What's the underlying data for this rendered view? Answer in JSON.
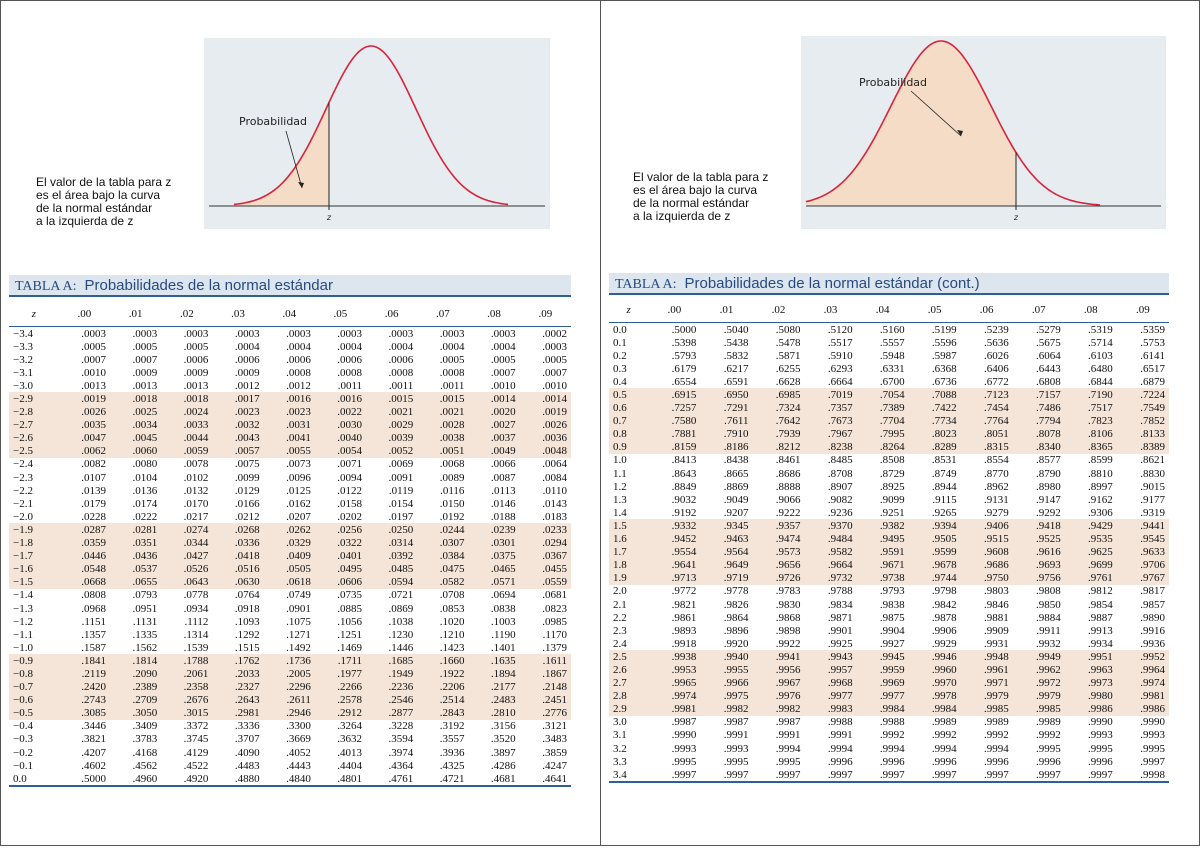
{
  "left": {
    "figure": {
      "label": "Probabilidad",
      "axis": "z",
      "caption": [
        "El valor de la tabla para z",
        "es el área bajo la curva",
        "de la normal estándar",
        "a la izquierda de z"
      ]
    },
    "table": {
      "prefix": "TABLA A:",
      "title": "Probabilidades de la normal estándar",
      "header": [
        "z",
        ".00",
        ".01",
        ".02",
        ".03",
        ".04",
        ".05",
        ".06",
        ".07",
        ".08",
        ".09"
      ],
      "rows": [
        [
          "−3.4",
          ".0003",
          ".0003",
          ".0003",
          ".0003",
          ".0003",
          ".0003",
          ".0003",
          ".0003",
          ".0003",
          ".0002"
        ],
        [
          "−3.3",
          ".0005",
          ".0005",
          ".0005",
          ".0004",
          ".0004",
          ".0004",
          ".0004",
          ".0004",
          ".0004",
          ".0003"
        ],
        [
          "−3.2",
          ".0007",
          ".0007",
          ".0006",
          ".0006",
          ".0006",
          ".0006",
          ".0006",
          ".0005",
          ".0005",
          ".0005"
        ],
        [
          "−3.1",
          ".0010",
          ".0009",
          ".0009",
          ".0009",
          ".0008",
          ".0008",
          ".0008",
          ".0008",
          ".0007",
          ".0007"
        ],
        [
          "−3.0",
          ".0013",
          ".0013",
          ".0013",
          ".0012",
          ".0012",
          ".0011",
          ".0011",
          ".0011",
          ".0010",
          ".0010"
        ],
        [
          "−2.9",
          ".0019",
          ".0018",
          ".0018",
          ".0017",
          ".0016",
          ".0016",
          ".0015",
          ".0015",
          ".0014",
          ".0014"
        ],
        [
          "−2.8",
          ".0026",
          ".0025",
          ".0024",
          ".0023",
          ".0023",
          ".0022",
          ".0021",
          ".0021",
          ".0020",
          ".0019"
        ],
        [
          "−2.7",
          ".0035",
          ".0034",
          ".0033",
          ".0032",
          ".0031",
          ".0030",
          ".0029",
          ".0028",
          ".0027",
          ".0026"
        ],
        [
          "−2.6",
          ".0047",
          ".0045",
          ".0044",
          ".0043",
          ".0041",
          ".0040",
          ".0039",
          ".0038",
          ".0037",
          ".0036"
        ],
        [
          "−2.5",
          ".0062",
          ".0060",
          ".0059",
          ".0057",
          ".0055",
          ".0054",
          ".0052",
          ".0051",
          ".0049",
          ".0048"
        ],
        [
          "−2.4",
          ".0082",
          ".0080",
          ".0078",
          ".0075",
          ".0073",
          ".0071",
          ".0069",
          ".0068",
          ".0066",
          ".0064"
        ],
        [
          "−2.3",
          ".0107",
          ".0104",
          ".0102",
          ".0099",
          ".0096",
          ".0094",
          ".0091",
          ".0089",
          ".0087",
          ".0084"
        ],
        [
          "−2.2",
          ".0139",
          ".0136",
          ".0132",
          ".0129",
          ".0125",
          ".0122",
          ".0119",
          ".0116",
          ".0113",
          ".0110"
        ],
        [
          "−2.1",
          ".0179",
          ".0174",
          ".0170",
          ".0166",
          ".0162",
          ".0158",
          ".0154",
          ".0150",
          ".0146",
          ".0143"
        ],
        [
          "−2.0",
          ".0228",
          ".0222",
          ".0217",
          ".0212",
          ".0207",
          ".0202",
          ".0197",
          ".0192",
          ".0188",
          ".0183"
        ],
        [
          "−1.9",
          ".0287",
          ".0281",
          ".0274",
          ".0268",
          ".0262",
          ".0256",
          ".0250",
          ".0244",
          ".0239",
          ".0233"
        ],
        [
          "−1.8",
          ".0359",
          ".0351",
          ".0344",
          ".0336",
          ".0329",
          ".0322",
          ".0314",
          ".0307",
          ".0301",
          ".0294"
        ],
        [
          "−1.7",
          ".0446",
          ".0436",
          ".0427",
          ".0418",
          ".0409",
          ".0401",
          ".0392",
          ".0384",
          ".0375",
          ".0367"
        ],
        [
          "−1.6",
          ".0548",
          ".0537",
          ".0526",
          ".0516",
          ".0505",
          ".0495",
          ".0485",
          ".0475",
          ".0465",
          ".0455"
        ],
        [
          "−1.5",
          ".0668",
          ".0655",
          ".0643",
          ".0630",
          ".0618",
          ".0606",
          ".0594",
          ".0582",
          ".0571",
          ".0559"
        ],
        [
          "−1.4",
          ".0808",
          ".0793",
          ".0778",
          ".0764",
          ".0749",
          ".0735",
          ".0721",
          ".0708",
          ".0694",
          ".0681"
        ],
        [
          "−1.3",
          ".0968",
          ".0951",
          ".0934",
          ".0918",
          ".0901",
          ".0885",
          ".0869",
          ".0853",
          ".0838",
          ".0823"
        ],
        [
          "−1.2",
          ".1151",
          ".1131",
          ".1112",
          ".1093",
          ".1075",
          ".1056",
          ".1038",
          ".1020",
          ".1003",
          ".0985"
        ],
        [
          "−1.1",
          ".1357",
          ".1335",
          ".1314",
          ".1292",
          ".1271",
          ".1251",
          ".1230",
          ".1210",
          ".1190",
          ".1170"
        ],
        [
          "−1.0",
          ".1587",
          ".1562",
          ".1539",
          ".1515",
          ".1492",
          ".1469",
          ".1446",
          ".1423",
          ".1401",
          ".1379"
        ],
        [
          "−0.9",
          ".1841",
          ".1814",
          ".1788",
          ".1762",
          ".1736",
          ".1711",
          ".1685",
          ".1660",
          ".1635",
          ".1611"
        ],
        [
          "−0.8",
          ".2119",
          ".2090",
          ".2061",
          ".2033",
          ".2005",
          ".1977",
          ".1949",
          ".1922",
          ".1894",
          ".1867"
        ],
        [
          "−0.7",
          ".2420",
          ".2389",
          ".2358",
          ".2327",
          ".2296",
          ".2266",
          ".2236",
          ".2206",
          ".2177",
          ".2148"
        ],
        [
          "−0.6",
          ".2743",
          ".2709",
          ".2676",
          ".2643",
          ".2611",
          ".2578",
          ".2546",
          ".2514",
          ".2483",
          ".2451"
        ],
        [
          "−0.5",
          ".3085",
          ".3050",
          ".3015",
          ".2981",
          ".2946",
          ".2912",
          ".2877",
          ".2843",
          ".2810",
          ".2776"
        ],
        [
          "−0.4",
          ".3446",
          ".3409",
          ".3372",
          ".3336",
          ".3300",
          ".3264",
          ".3228",
          ".3192",
          ".3156",
          ".3121"
        ],
        [
          "−0.3",
          ".3821",
          ".3783",
          ".3745",
          ".3707",
          ".3669",
          ".3632",
          ".3594",
          ".3557",
          ".3520",
          ".3483"
        ],
        [
          "−0.2",
          ".4207",
          ".4168",
          ".4129",
          ".4090",
          ".4052",
          ".4013",
          ".3974",
          ".3936",
          ".3897",
          ".3859"
        ],
        [
          "−0.1",
          ".4602",
          ".4562",
          ".4522",
          ".4483",
          ".4443",
          ".4404",
          ".4364",
          ".4325",
          ".4286",
          ".4247"
        ],
        [
          "0.0",
          ".5000",
          ".4960",
          ".4920",
          ".4880",
          ".4840",
          ".4801",
          ".4761",
          ".4721",
          ".4681",
          ".4641"
        ]
      ]
    }
  },
  "right": {
    "figure": {
      "label": "Probabilidad",
      "axis": "z",
      "caption": [
        "El valor de la tabla para z",
        "es el área bajo la curva",
        "de la normal estándar",
        "a la izquierda de z"
      ]
    },
    "table": {
      "prefix": "TABLA A:",
      "title": "Probabilidades de la normal estándar (cont.)",
      "header": [
        "z",
        ".00",
        ".01",
        ".02",
        ".03",
        ".04",
        ".05",
        ".06",
        ".07",
        ".08",
        ".09"
      ],
      "rows": [
        [
          "0.0",
          ".5000",
          ".5040",
          ".5080",
          ".5120",
          ".5160",
          ".5199",
          ".5239",
          ".5279",
          ".5319",
          ".5359"
        ],
        [
          "0.1",
          ".5398",
          ".5438",
          ".5478",
          ".5517",
          ".5557",
          ".5596",
          ".5636",
          ".5675",
          ".5714",
          ".5753"
        ],
        [
          "0.2",
          ".5793",
          ".5832",
          ".5871",
          ".5910",
          ".5948",
          ".5987",
          ".6026",
          ".6064",
          ".6103",
          ".6141"
        ],
        [
          "0.3",
          ".6179",
          ".6217",
          ".6255",
          ".6293",
          ".6331",
          ".6368",
          ".6406",
          ".6443",
          ".6480",
          ".6517"
        ],
        [
          "0.4",
          ".6554",
          ".6591",
          ".6628",
          ".6664",
          ".6700",
          ".6736",
          ".6772",
          ".6808",
          ".6844",
          ".6879"
        ],
        [
          "0.5",
          ".6915",
          ".6950",
          ".6985",
          ".7019",
          ".7054",
          ".7088",
          ".7123",
          ".7157",
          ".7190",
          ".7224"
        ],
        [
          "0.6",
          ".7257",
          ".7291",
          ".7324",
          ".7357",
          ".7389",
          ".7422",
          ".7454",
          ".7486",
          ".7517",
          ".7549"
        ],
        [
          "0.7",
          ".7580",
          ".7611",
          ".7642",
          ".7673",
          ".7704",
          ".7734",
          ".7764",
          ".7794",
          ".7823",
          ".7852"
        ],
        [
          "0.8",
          ".7881",
          ".7910",
          ".7939",
          ".7967",
          ".7995",
          ".8023",
          ".8051",
          ".8078",
          ".8106",
          ".8133"
        ],
        [
          "0.9",
          ".8159",
          ".8186",
          ".8212",
          ".8238",
          ".8264",
          ".8289",
          ".8315",
          ".8340",
          ".8365",
          ".8389"
        ],
        [
          "1.0",
          ".8413",
          ".8438",
          ".8461",
          ".8485",
          ".8508",
          ".8531",
          ".8554",
          ".8577",
          ".8599",
          ".8621"
        ],
        [
          "1.1",
          ".8643",
          ".8665",
          ".8686",
          ".8708",
          ".8729",
          ".8749",
          ".8770",
          ".8790",
          ".8810",
          ".8830"
        ],
        [
          "1.2",
          ".8849",
          ".8869",
          ".8888",
          ".8907",
          ".8925",
          ".8944",
          ".8962",
          ".8980",
          ".8997",
          ".9015"
        ],
        [
          "1.3",
          ".9032",
          ".9049",
          ".9066",
          ".9082",
          ".9099",
          ".9115",
          ".9131",
          ".9147",
          ".9162",
          ".9177"
        ],
        [
          "1.4",
          ".9192",
          ".9207",
          ".9222",
          ".9236",
          ".9251",
          ".9265",
          ".9279",
          ".9292",
          ".9306",
          ".9319"
        ],
        [
          "1.5",
          ".9332",
          ".9345",
          ".9357",
          ".9370",
          ".9382",
          ".9394",
          ".9406",
          ".9418",
          ".9429",
          ".9441"
        ],
        [
          "1.6",
          ".9452",
          ".9463",
          ".9474",
          ".9484",
          ".9495",
          ".9505",
          ".9515",
          ".9525",
          ".9535",
          ".9545"
        ],
        [
          "1.7",
          ".9554",
          ".9564",
          ".9573",
          ".9582",
          ".9591",
          ".9599",
          ".9608",
          ".9616",
          ".9625",
          ".9633"
        ],
        [
          "1.8",
          ".9641",
          ".9649",
          ".9656",
          ".9664",
          ".9671",
          ".9678",
          ".9686",
          ".9693",
          ".9699",
          ".9706"
        ],
        [
          "1.9",
          ".9713",
          ".9719",
          ".9726",
          ".9732",
          ".9738",
          ".9744",
          ".9750",
          ".9756",
          ".9761",
          ".9767"
        ],
        [
          "2.0",
          ".9772",
          ".9778",
          ".9783",
          ".9788",
          ".9793",
          ".9798",
          ".9803",
          ".9808",
          ".9812",
          ".9817"
        ],
        [
          "2.1",
          ".9821",
          ".9826",
          ".9830",
          ".9834",
          ".9838",
          ".9842",
          ".9846",
          ".9850",
          ".9854",
          ".9857"
        ],
        [
          "2.2",
          ".9861",
          ".9864",
          ".9868",
          ".9871",
          ".9875",
          ".9878",
          ".9881",
          ".9884",
          ".9887",
          ".9890"
        ],
        [
          "2.3",
          ".9893",
          ".9896",
          ".9898",
          ".9901",
          ".9904",
          ".9906",
          ".9909",
          ".9911",
          ".9913",
          ".9916"
        ],
        [
          "2.4",
          ".9918",
          ".9920",
          ".9922",
          ".9925",
          ".9927",
          ".9929",
          ".9931",
          ".9932",
          ".9934",
          ".9936"
        ],
        [
          "2.5",
          ".9938",
          ".9940",
          ".9941",
          ".9943",
          ".9945",
          ".9946",
          ".9948",
          ".9949",
          ".9951",
          ".9952"
        ],
        [
          "2.6",
          ".9953",
          ".9955",
          ".9956",
          ".9957",
          ".9959",
          ".9960",
          ".9961",
          ".9962",
          ".9963",
          ".9964"
        ],
        [
          "2.7",
          ".9965",
          ".9966",
          ".9967",
          ".9968",
          ".9969",
          ".9970",
          ".9971",
          ".9972",
          ".9973",
          ".9974"
        ],
        [
          "2.8",
          ".9974",
          ".9975",
          ".9976",
          ".9977",
          ".9977",
          ".9978",
          ".9979",
          ".9979",
          ".9980",
          ".9981"
        ],
        [
          "2.9",
          ".9981",
          ".9982",
          ".9982",
          ".9983",
          ".9984",
          ".9984",
          ".9985",
          ".9985",
          ".9986",
          ".9986"
        ],
        [
          "3.0",
          ".9987",
          ".9987",
          ".9987",
          ".9988",
          ".9988",
          ".9989",
          ".9989",
          ".9989",
          ".9990",
          ".9990"
        ],
        [
          "3.1",
          ".9990",
          ".9991",
          ".9991",
          ".9991",
          ".9992",
          ".9992",
          ".9992",
          ".9992",
          ".9993",
          ".9993"
        ],
        [
          "3.2",
          ".9993",
          ".9993",
          ".9994",
          ".9994",
          ".9994",
          ".9994",
          ".9994",
          ".9995",
          ".9995",
          ".9995"
        ],
        [
          "3.3",
          ".9995",
          ".9995",
          ".9995",
          ".9996",
          ".9996",
          ".9996",
          ".9996",
          ".9996",
          ".9996",
          ".9997"
        ],
        [
          "3.4",
          ".9997",
          ".9997",
          ".9997",
          ".9997",
          ".9997",
          ".9997",
          ".9997",
          ".9997",
          ".9997",
          ".9998"
        ]
      ]
    }
  }
}
